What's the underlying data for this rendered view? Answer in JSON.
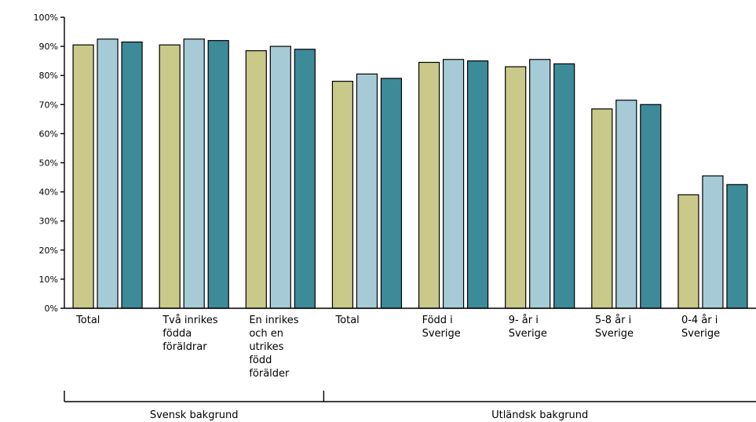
{
  "chart_data": {
    "type": "bar",
    "categories": [
      [
        "Total"
      ],
      [
        "Två inrikes",
        "födda",
        "föräldrar"
      ],
      [
        "En inrikes",
        "och en",
        "utrikes",
        "född",
        "förälder"
      ],
      [
        "Total"
      ],
      [
        "Född i",
        "Sverige"
      ],
      [
        "9- år i",
        "Sverige"
      ],
      [
        "5-8 år i",
        "Sverige"
      ],
      [
        "0-4 år i",
        "Sverige"
      ]
    ],
    "series": [
      {
        "color": "#c9c98a",
        "values": [
          90.5,
          90.5,
          88.5,
          78,
          84.5,
          83,
          68.5,
          39
        ]
      },
      {
        "color": "#a6cbd6",
        "values": [
          92.5,
          92.5,
          90,
          80.5,
          85.5,
          85.5,
          71.5,
          45.5
        ]
      },
      {
        "color": "#3d8a99",
        "values": [
          91.5,
          92,
          89,
          79,
          85,
          84,
          70,
          42.5
        ]
      }
    ],
    "yticks": [
      "0%",
      "10%",
      "20%",
      "30%",
      "40%",
      "50%",
      "60%",
      "70%",
      "80%",
      "90%",
      "100%"
    ],
    "ylim": [
      0,
      100
    ],
    "groups": [
      {
        "label": "Svensk bakgrund",
        "span": [
          0,
          2
        ]
      },
      {
        "label": "Utländsk bakgrund",
        "span": [
          3,
          7
        ]
      }
    ],
    "grid": false,
    "legend": "none"
  }
}
